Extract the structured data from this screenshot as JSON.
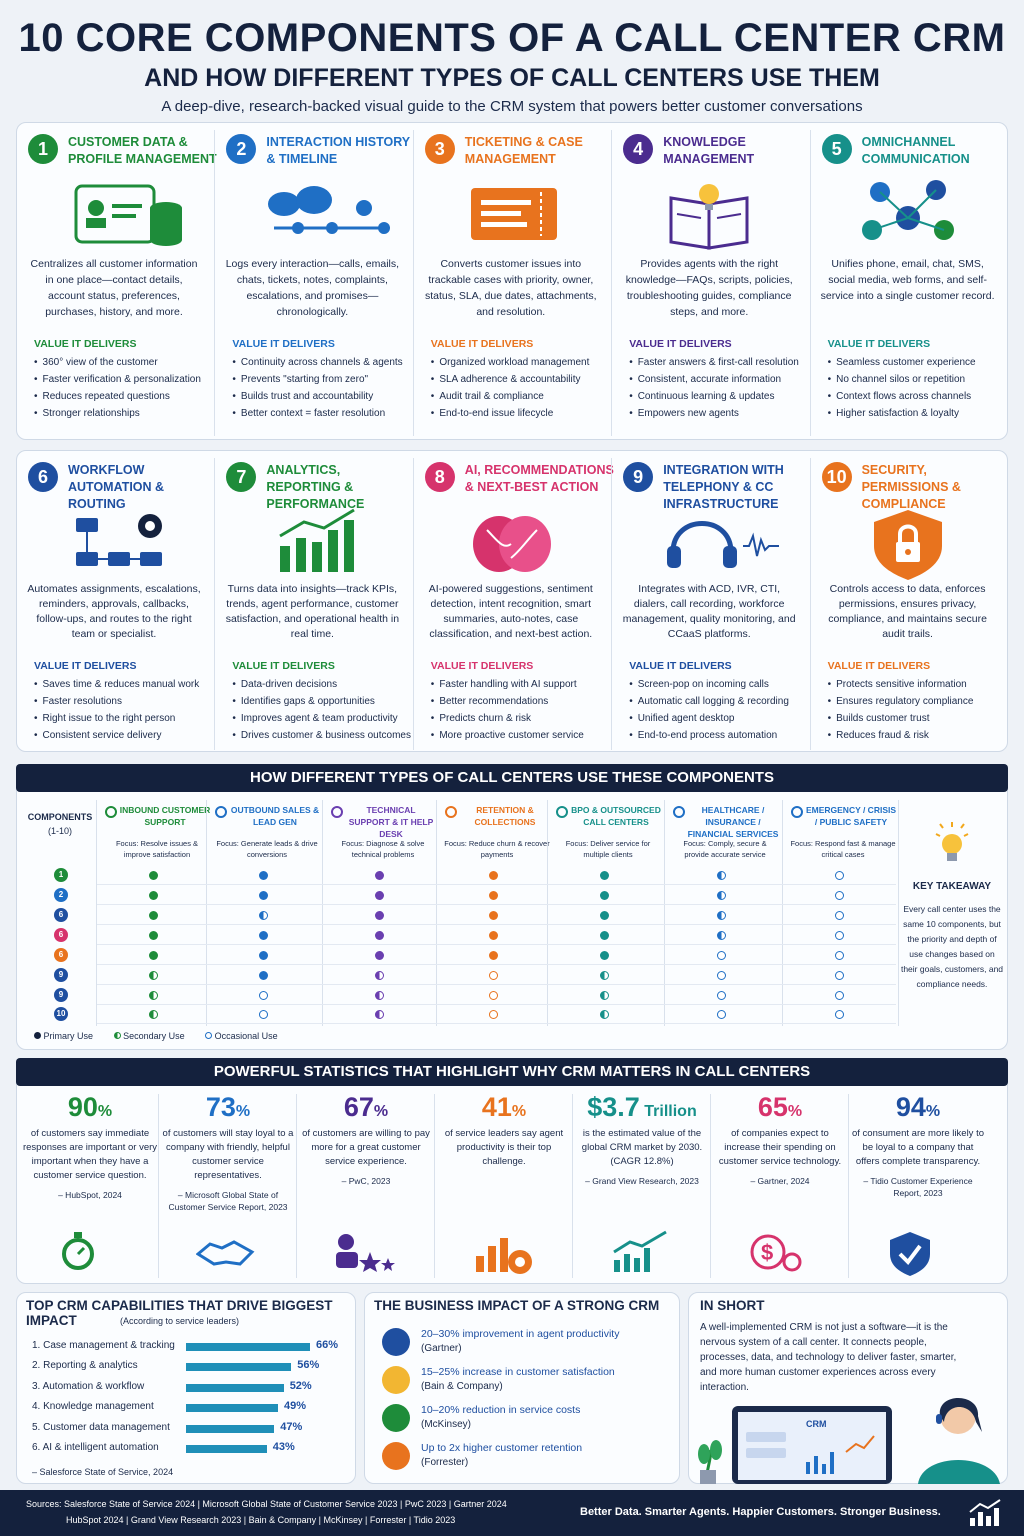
{
  "header": {
    "title": "10 CORE COMPONENTS OF A CALL CENTER CRM",
    "subtitle": "AND HOW DIFFERENT TYPES OF CALL CENTERS USE THEM",
    "tagline": "A deep-dive, research-backed visual guide to the CRM system that powers better customer conversations"
  },
  "value_label": "VALUE IT DELIVERS",
  "components": [
    {
      "num": "1",
      "title": "CUSTOMER DATA & PROFILE MANAGEMENT",
      "color": "#1e8c3a",
      "desc": "Centralizes all customer information in one place—contact details, account status, preferences, purchases, history, and more.",
      "values": [
        "360° view of the customer",
        "Faster verification & personalization",
        "Reduces repeated questions",
        "Stronger relationships"
      ]
    },
    {
      "num": "2",
      "title": "INTERACTION HISTORY & TIMELINE",
      "color": "#1f6fc5",
      "desc": "Logs every interaction—calls, emails, chats, tickets, notes, complaints, escalations, and promises—chronologically.",
      "values": [
        "Continuity across channels & agents",
        "Prevents \"starting from zero\"",
        "Builds trust and accountability",
        "Better context = faster resolution"
      ]
    },
    {
      "num": "3",
      "title": "TICKETING & CASE MANAGEMENT",
      "color": "#e8731e",
      "desc": "Converts customer issues into trackable cases with priority, owner, status, SLA, due dates, attachments, and resolution.",
      "values": [
        "Organized workload management",
        "SLA adherence & accountability",
        "Audit trail & compliance",
        "End-to-end issue lifecycle"
      ]
    },
    {
      "num": "4",
      "title": "KNOWLEDGE MANAGEMENT",
      "color": "#4b2c8f",
      "desc": "Provides agents with the right knowledge—FAQs, scripts, policies, troubleshooting guides, compliance steps, and more.",
      "values": [
        "Faster answers & first-call resolution",
        "Consistent, accurate information",
        "Continuous learning & updates",
        "Empowers new agents"
      ]
    },
    {
      "num": "5",
      "title": "OMNICHANNEL COMMUNICATION",
      "color": "#16908a",
      "desc": "Unifies phone, email, chat, SMS, social media, web forms, and self-service into a single customer record.",
      "values": [
        "Seamless customer experience",
        "No channel silos or repetition",
        "Context flows across channels",
        "Higher satisfaction & loyalty"
      ]
    },
    {
      "num": "6",
      "title": "WORKFLOW AUTOMATION & ROUTING",
      "color": "#1f4fa0",
      "desc": "Automates assignments, escalations, reminders, approvals, callbacks, follow-ups, and routes to the right team or specialist.",
      "values": [
        "Saves time & reduces manual work",
        "Faster resolutions",
        "Right issue to the right person",
        "Consistent service delivery"
      ]
    },
    {
      "num": "7",
      "title": "ANALYTICS, REPORTING & PERFORMANCE",
      "color": "#1e8c3a",
      "desc": "Turns data into insights—track KPIs, trends, agent performance, customer satisfaction, and operational health in real time.",
      "values": [
        "Data-driven decisions",
        "Identifies gaps & opportunities",
        "Improves agent & team productivity",
        "Drives customer & business outcomes"
      ]
    },
    {
      "num": "8",
      "title": "AI, RECOMMENDATIONS & NEXT-BEST ACTION",
      "color": "#d6336c",
      "desc": "AI-powered suggestions, sentiment detection, intent recognition, smart summaries, auto-notes, case classification, and next-best action.",
      "values": [
        "Faster handling with AI support",
        "Better recommendations",
        "Predicts churn & risk",
        "More proactive customer service"
      ]
    },
    {
      "num": "9",
      "title": "INTEGRATION WITH TELEPHONY & CC INFRASTRUCTURE",
      "color": "#1f4fa0",
      "desc": "Integrates with ACD, IVR, CTI, dialers, call recording, workforce management, quality monitoring, and CCaaS platforms.",
      "values": [
        "Screen-pop on incoming calls",
        "Automatic call logging & recording",
        "Unified agent desktop",
        "End-to-end process automation"
      ]
    },
    {
      "num": "10",
      "title": "SECURITY, PERMISSIONS & COMPLIANCE",
      "color": "#e8731e",
      "desc": "Controls access to data, enforces permissions, ensures privacy, compliance, and maintains secure audit trails.",
      "values": [
        "Protects sensitive information",
        "Ensures regulatory compliance",
        "Builds customer trust",
        "Reduces fraud & risk"
      ]
    }
  ],
  "usage": {
    "band": "HOW DIFFERENT TYPES OF CALL CENTERS USE THESE COMPONENTS",
    "components_label": "COMPONENTS",
    "components_range": "(1-10)",
    "row_labels": [
      "1",
      "2",
      "6",
      "6",
      "6",
      "9",
      "9",
      "10"
    ],
    "row_colors": [
      "#1e8c3a",
      "#1f6fc5",
      "#1f4fa0",
      "#d6336c",
      "#e8731e",
      "#1f4fa0",
      "#1f4fa0",
      "#1f4fa0"
    ],
    "types": [
      {
        "name": "INBOUND CUSTOMER SUPPORT",
        "focus": "Focus: Resolve issues & improve satisfaction",
        "color": "#1e8c3a",
        "levels": [
          "p",
          "p",
          "p",
          "p",
          "p",
          "s",
          "s",
          "s"
        ]
      },
      {
        "name": "OUTBOUND SALES & LEAD GEN",
        "focus": "Focus: Generate leads & drive conversions",
        "color": "#1f6fc5",
        "levels": [
          "p",
          "p",
          "s",
          "p",
          "p",
          "p",
          "o",
          "o"
        ]
      },
      {
        "name": "TECHNICAL SUPPORT & IT HELP DESK",
        "focus": "Focus: Diagnose & solve technical problems",
        "color": "#6a3fb0",
        "levels": [
          "p",
          "p",
          "p",
          "p",
          "p",
          "s",
          "s",
          "s"
        ]
      },
      {
        "name": "RETENTION & COLLECTIONS",
        "focus": "Focus: Reduce churn & recover payments",
        "color": "#e8731e",
        "levels": [
          "p",
          "p",
          "p",
          "p",
          "p",
          "o",
          "o",
          "o"
        ]
      },
      {
        "name": "BPO & OUTSOURCED CALL CENTERS",
        "focus": "Focus: Deliver service for multiple clients",
        "color": "#16908a",
        "levels": [
          "p",
          "p",
          "p",
          "p",
          "p",
          "s",
          "s",
          "s"
        ]
      },
      {
        "name": "HEALTHCARE / INSURANCE / FINANCIAL SERVICES",
        "focus": "Focus: Comply, secure & provide accurate service",
        "color": "#1f6fc5",
        "levels": [
          "s",
          "s",
          "s",
          "s",
          "o",
          "o",
          "o",
          "o"
        ]
      },
      {
        "name": "EMERGENCY / CRISIS / PUBLIC SAFETY",
        "focus": "Focus: Respond fast & manage critical cases",
        "color": "#1f6fc5",
        "levels": [
          "o",
          "o",
          "o",
          "o",
          "o",
          "o",
          "o",
          "o"
        ]
      }
    ],
    "legend": [
      "Primary Use",
      "Secondary Use",
      "Occasional Use"
    ],
    "takeaway_title": "KEY TAKEAWAY",
    "takeaway_text": "Every call center uses the same 10 components, but the priority and depth of use changes based on their goals, customers, and compliance needs."
  },
  "stats": {
    "band": "POWERFUL STATISTICS THAT HIGHLIGHT WHY CRM  MATTERS IN CALL CENTERS",
    "items": [
      {
        "value": "90",
        "unit": "%",
        "color": "#1e8c3a",
        "text": "of customers say immediate responses are important or very important when they have a customer service question.",
        "source": "– HubSpot, 2024",
        "icon": "stopwatch-icon"
      },
      {
        "value": "73",
        "unit": "%",
        "color": "#1f6fc5",
        "text": "of customers will stay loyal to a company with friendly, helpful customer service representatives.",
        "source": "– Microsoft Global State of Customer Service Report, 2023",
        "icon": "handshake-icon"
      },
      {
        "value": "67",
        "unit": "%",
        "color": "#4b2c8f",
        "text": "of customers are willing to pay more for a great customer service experience.",
        "source": "– PwC, 2023",
        "icon": "user-stars-icon"
      },
      {
        "value": "41",
        "unit": "%",
        "color": "#e8731e",
        "text": "of service leaders say agent productivity is their top challenge.",
        "source": "",
        "icon": "bars-gear-icon"
      },
      {
        "value": "$3.7",
        "unit": " Trillion",
        "color": "#16908a",
        "text": "is the estimated value of the global CRM market by 2030. (CAGR 12.8%)",
        "source": "– Grand View Research, 2023",
        "icon": "growth-chart-icon"
      },
      {
        "value": "65",
        "unit": "%",
        "color": "#d6336c",
        "text": "of companies expect to increase their spending on customer service technology.",
        "source": "– Gartner, 2024",
        "icon": "dollar-gear-icon"
      },
      {
        "value": "94",
        "unit": "%",
        "color": "#1f4fa0",
        "text": "of consument are more likely to be loyal to a company that offers complete transparency.",
        "source": "– Tidio Customer Experience Report, 2023",
        "icon": "shield-check-icon"
      }
    ]
  },
  "capabilities": {
    "title": "TOP CRM CAPABILITIES THAT DRIVE BIGGEST IMPACT",
    "sub": "(According to service leaders)",
    "items": [
      {
        "label": "1. Case management & tracking",
        "pct": 66,
        "display": "66%"
      },
      {
        "label": "2. Reporting & analytics",
        "pct": 56,
        "display": "56%"
      },
      {
        "label": "3. Automation & workflow",
        "pct": 52,
        "display": "52%"
      },
      {
        "label": "4. Knowledge management",
        "pct": 49,
        "display": "49%"
      },
      {
        "label": "5. Customer data management",
        "pct": 47,
        "display": "47%"
      },
      {
        "label": "6. AI & intelligent automation",
        "pct": 43,
        "display": "43%"
      }
    ],
    "source": "– Salesforce State of Service, 2024"
  },
  "impact": {
    "title": "THE BUSINESS IMPACT OF A STRONG CRM",
    "items": [
      {
        "text": "20–30% improvement in agent productivity",
        "source": "(Gartner)",
        "color": "#1f4fa0",
        "icon": "team-icon"
      },
      {
        "text": "15–25% increase in customer satisfaction",
        "source": "(Bain & Company)",
        "color": "#f2b632",
        "icon": "smiley-icon"
      },
      {
        "text": "10–20% reduction in service costs",
        "source": "(McKinsey)",
        "color": "#1e8c3a",
        "icon": "money-down-icon"
      },
      {
        "text": "Up to 2x higher customer retention",
        "source": "(Forrester)",
        "color": "#e8731e",
        "icon": "dollar-icon"
      }
    ]
  },
  "in_short": {
    "title": "IN SHORT",
    "text": "A well-implemented CRM is not just a software—it is the nervous system of a call center. It connects people, processes, data, and technology to deliver faster, smarter, and more human customer experiences across every interaction.",
    "screen_label": "CRM"
  },
  "footer": {
    "sources_1": "Sources:  Salesforce State of Service 2024  |  Microsoft Global State of Customer Service 2023  |  PwC 2023  |  Gartner 2024",
    "sources_2": "HubSpot 2024  |  Grand View Research 2023  |  Bain & Company  |  McKinsey  |  Forrester  |  Tidio 2023",
    "slogan": "Better Data. Smarter Agents. Happier Customers. Stronger Business."
  }
}
